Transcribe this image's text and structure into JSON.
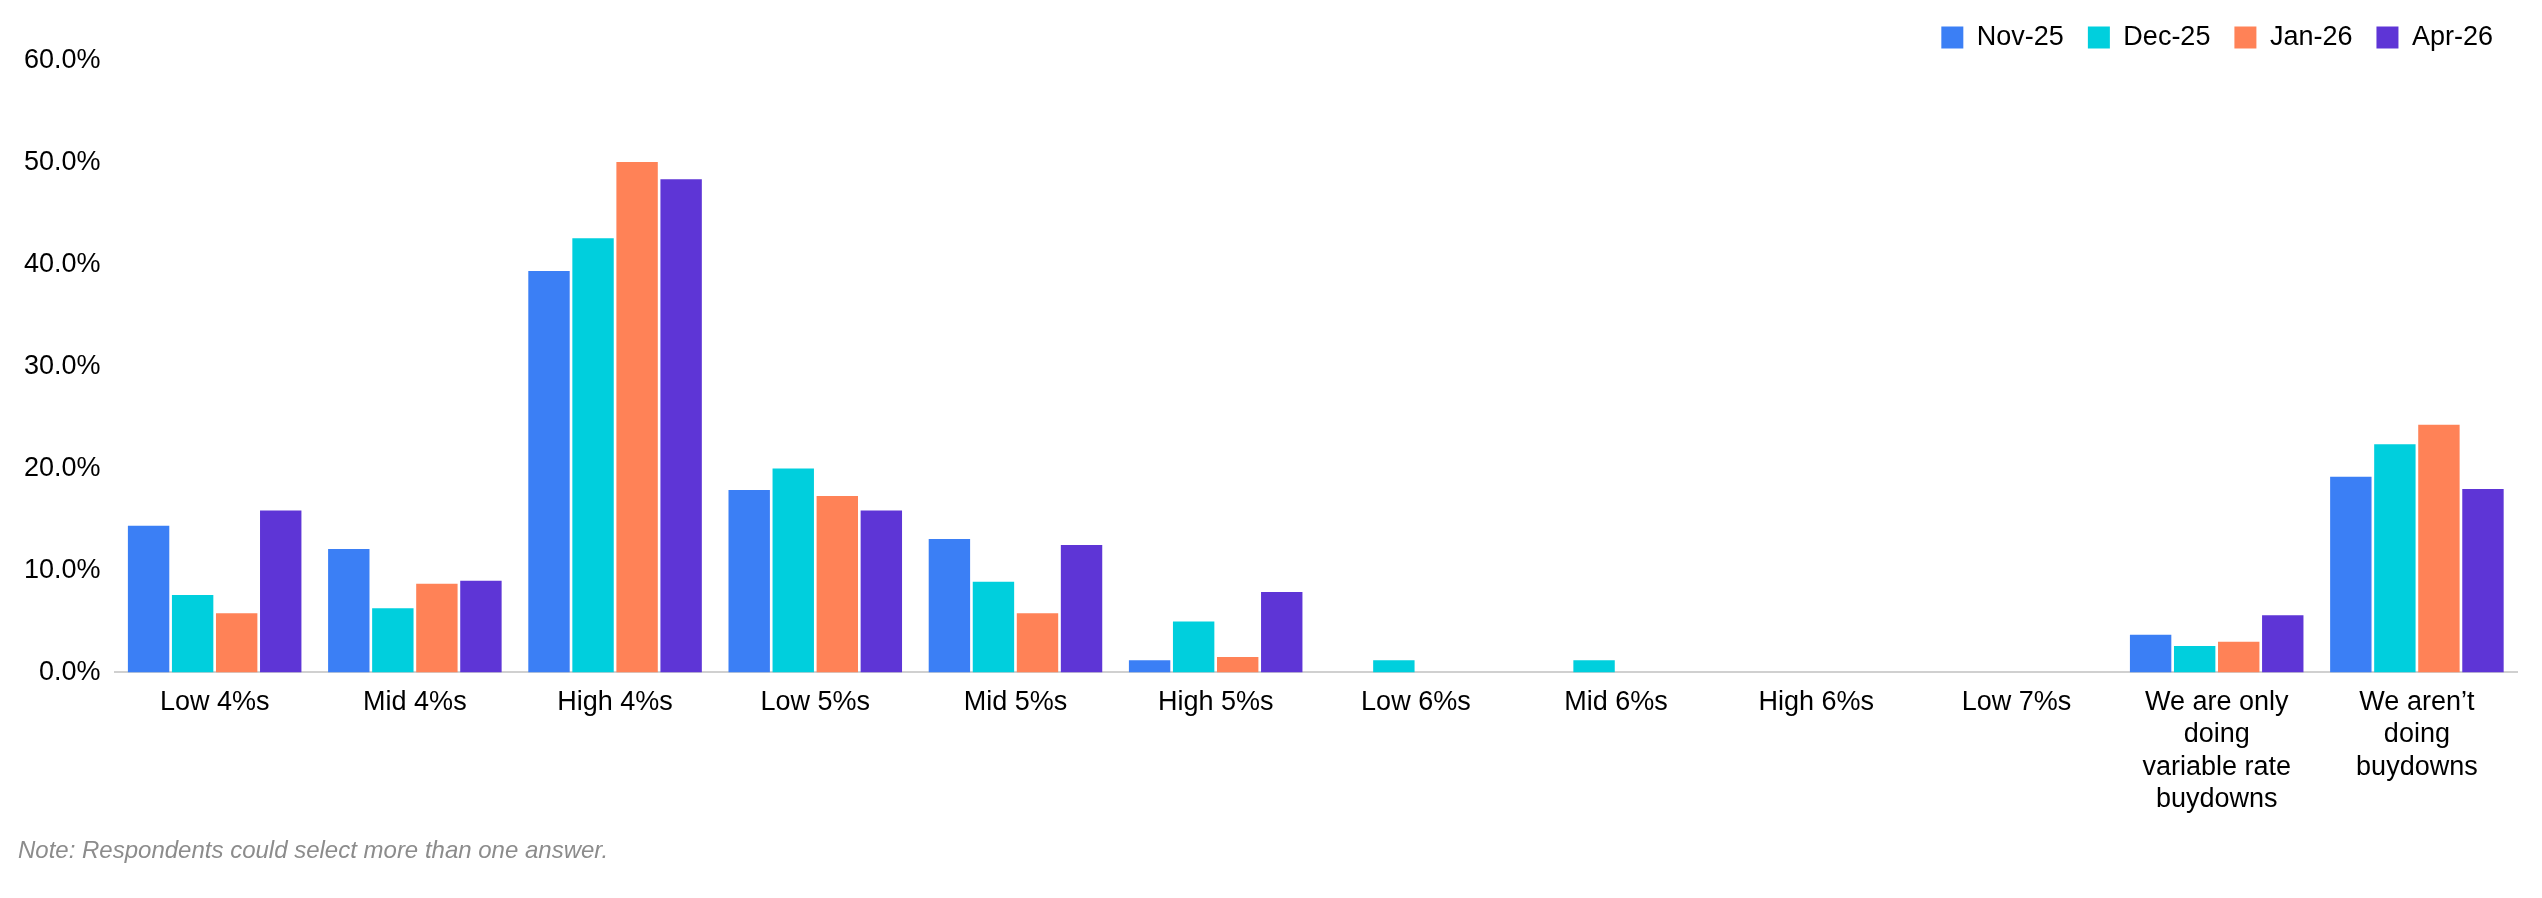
{
  "chart_data": {
    "type": "bar",
    "categories": [
      "Low 4%s",
      "Mid 4%s",
      "High 4%s",
      "Low 5%s",
      "Mid 5%s",
      "High 5%s",
      "Low 6%s",
      "Mid 6%s",
      "High 6%s",
      "Low 7%s",
      "We are only doing variable rate buydowns",
      "We aren’t doing buydowns"
    ],
    "series": [
      {
        "name": "Nov-25",
        "color": "#3b7ff5",
        "values": [
          14.4,
          12.1,
          39.4,
          17.9,
          13.1,
          1.2,
          0,
          0,
          0,
          0,
          3.7,
          19.2
        ]
      },
      {
        "name": "Dec-25",
        "color": "#00cfdd",
        "values": [
          7.6,
          6.3,
          42.6,
          20.0,
          8.9,
          5.0,
          1.2,
          1.2,
          0,
          0,
          2.6,
          22.4
        ]
      },
      {
        "name": "Jan-26",
        "color": "#ff8257",
        "values": [
          5.8,
          8.7,
          50.1,
          17.3,
          5.8,
          1.5,
          0,
          0,
          0,
          0,
          3.0,
          24.3
        ]
      },
      {
        "name": "Apr-26",
        "color": "#5e35d6",
        "values": [
          15.9,
          9.0,
          48.4,
          15.9,
          12.5,
          7.9,
          0,
          0,
          0,
          0,
          5.6,
          18.0
        ]
      }
    ],
    "ylim": [
      0,
      60
    ],
    "yticks": [
      {
        "value": 0,
        "label": "0.0%"
      },
      {
        "value": 10,
        "label": "10.0%"
      },
      {
        "value": 20,
        "label": "20.0%"
      },
      {
        "value": 30,
        "label": "30.0%"
      },
      {
        "value": 40,
        "label": "40.0%"
      },
      {
        "value": 50,
        "label": "50.0%"
      },
      {
        "value": 60,
        "label": "60.0%"
      }
    ],
    "grid": false,
    "legend": "top right",
    "annotations": [
      "Note: Respondents could select more than one answer."
    ]
  }
}
